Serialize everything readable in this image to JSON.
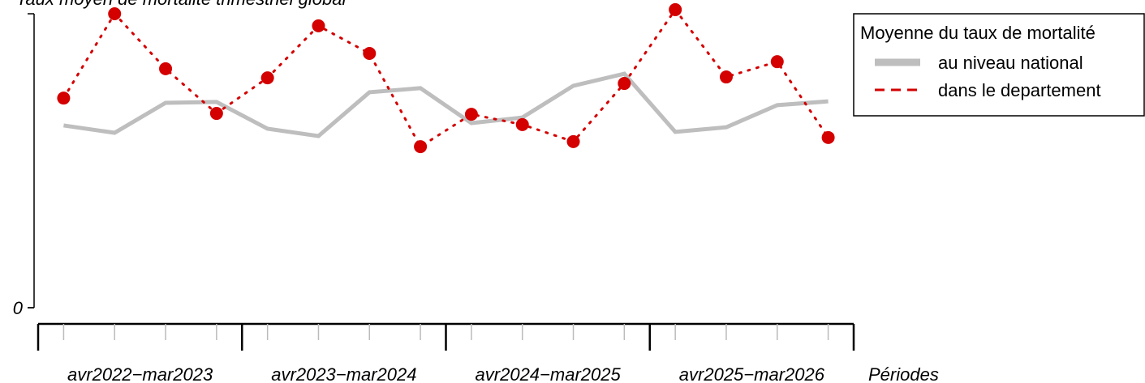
{
  "chart_data": {
    "type": "line",
    "title": "Taux moyen de mortalité trimestriel global",
    "x_label": "Périodes",
    "categories": [
      null,
      null,
      null,
      null,
      null,
      null,
      null,
      null,
      null,
      null,
      null,
      null,
      null,
      null,
      null,
      null
    ],
    "groups": [
      "avr2022−mar2023",
      "avr2023−mar2024",
      "avr2024−mar2025",
      "avr2025−mar2026"
    ],
    "ylim": [
      0,
      100
    ],
    "yticks": [
      0
    ],
    "legend_title": "Moyenne du taux de mortalité",
    "legend": "top-right",
    "series": [
      {
        "name": "au niveau national",
        "color": "#bebebe",
        "values": [
          62.0,
          59.5,
          69.7,
          70.0,
          60.9,
          58.4,
          73.3,
          74.7,
          62.8,
          64.7,
          75.5,
          79.6,
          59.8,
          61.4,
          68.9,
          70.2
        ]
      },
      {
        "name": "dans le departement",
        "color": "#d40000",
        "values": [
          71.3,
          100,
          81.3,
          66.1,
          78.2,
          95.9,
          86.5,
          54.8,
          65.8,
          62.3,
          56.5,
          76.3,
          101.4,
          78.5,
          83.7,
          57.9
        ]
      }
    ]
  }
}
